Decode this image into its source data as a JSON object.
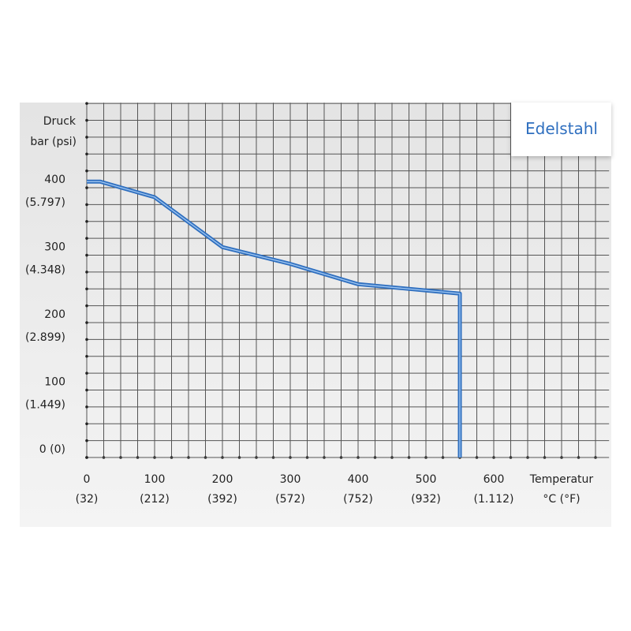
{
  "chart_data": {
    "type": "line",
    "y_label": [
      "Druck",
      "bar (psi)"
    ],
    "x_label": [
      "Temperatur",
      "°C (°F)"
    ],
    "x": [
      0,
      20,
      100,
      200,
      300,
      400,
      550,
      550
    ],
    "series": [
      {
        "name": "Edelstahl",
        "color": "#2f6fbf",
        "values": [
          409,
          409,
          386,
          312,
          287,
          257,
          243,
          0
        ]
      }
    ],
    "xlim": [
      0,
      770
    ],
    "ylim": [
      0,
      526
    ],
    "xticks": [
      0,
      100,
      200,
      300,
      400,
      500,
      600
    ],
    "x_secondary_ticks": [
      {
        "value": 0,
        "label": "(32)"
      },
      {
        "value": 100,
        "label": "(212)"
      },
      {
        "value": 200,
        "label": "(392)"
      },
      {
        "value": 300,
        "label": "(572)"
      },
      {
        "value": 400,
        "label": "(752)"
      },
      {
        "value": 500,
        "label": "(932)"
      },
      {
        "value": 600,
        "label": "(1.112)"
      }
    ],
    "yticks": [
      {
        "value": 0,
        "label": "0 (0)"
      },
      100,
      200,
      300,
      400
    ],
    "y_secondary_ticks": [
      {
        "value": 100,
        "label": "(1.449)"
      },
      {
        "value": 200,
        "label": "(2.899)"
      },
      {
        "value": 300,
        "label": "(4.348)"
      },
      {
        "value": 400,
        "label": "(5.797)"
      }
    ],
    "grid": true,
    "grid_step": 25,
    "legend": "upper right"
  }
}
